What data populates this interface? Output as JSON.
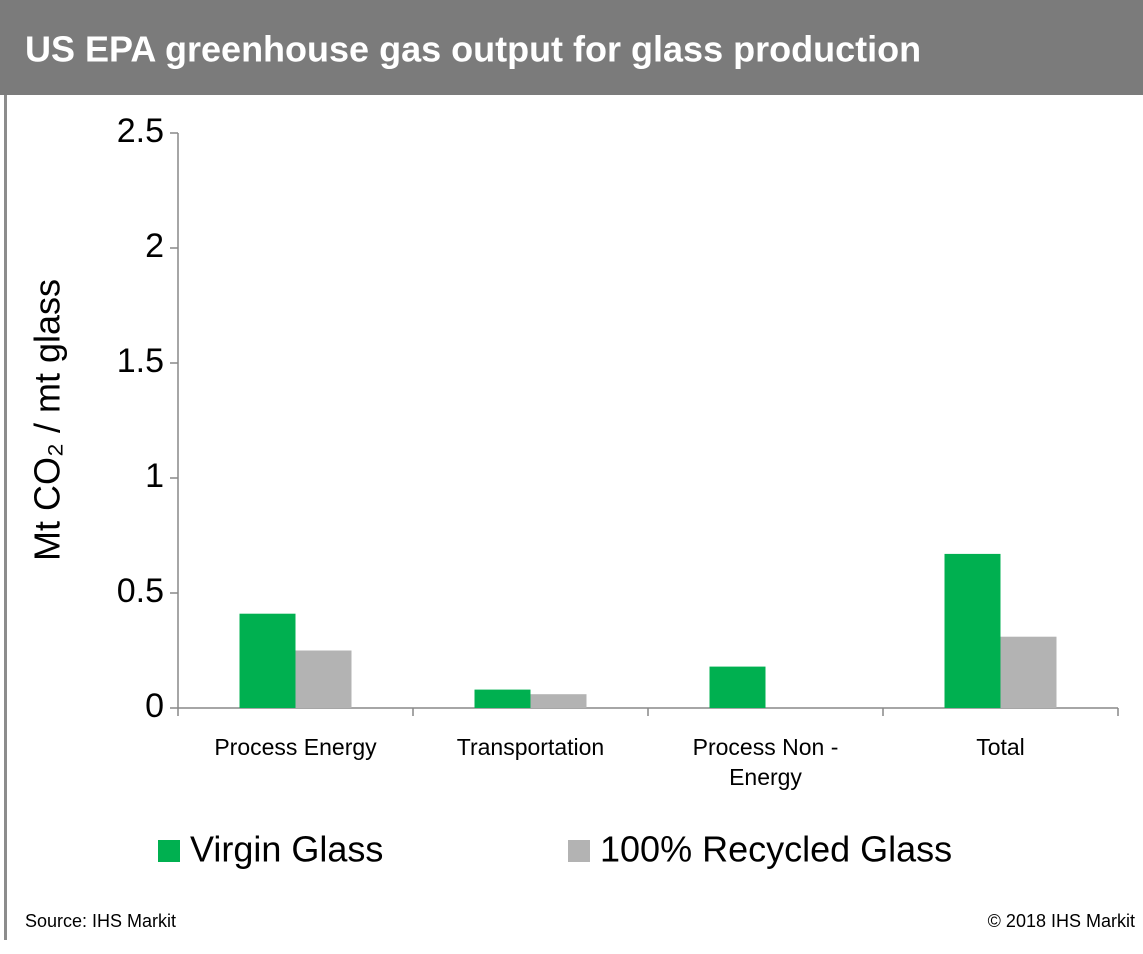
{
  "chart_data": {
    "type": "bar",
    "title": "US EPA greenhouse gas output for glass production",
    "y_label": "Mt CO₂ / mt glass",
    "categories": [
      "Process Energy",
      "Transportation",
      "Process Non - Energy",
      "Total"
    ],
    "series": [
      {
        "name": "Virgin Glass",
        "color": "#00b050",
        "values": [
          0.41,
          0.08,
          0.18,
          0.67
        ]
      },
      {
        "name": "100% Recycled Glass",
        "color": "#b3b3b3",
        "values": [
          0.25,
          0.06,
          0,
          0.31
        ]
      }
    ],
    "ylim": [
      0,
      2.5
    ],
    "yticks": [
      0,
      0.5,
      1,
      1.5,
      2,
      2.5
    ],
    "grid": false,
    "source": "Source: IHS Markit",
    "copyright": "© 2018 IHS Markit"
  }
}
